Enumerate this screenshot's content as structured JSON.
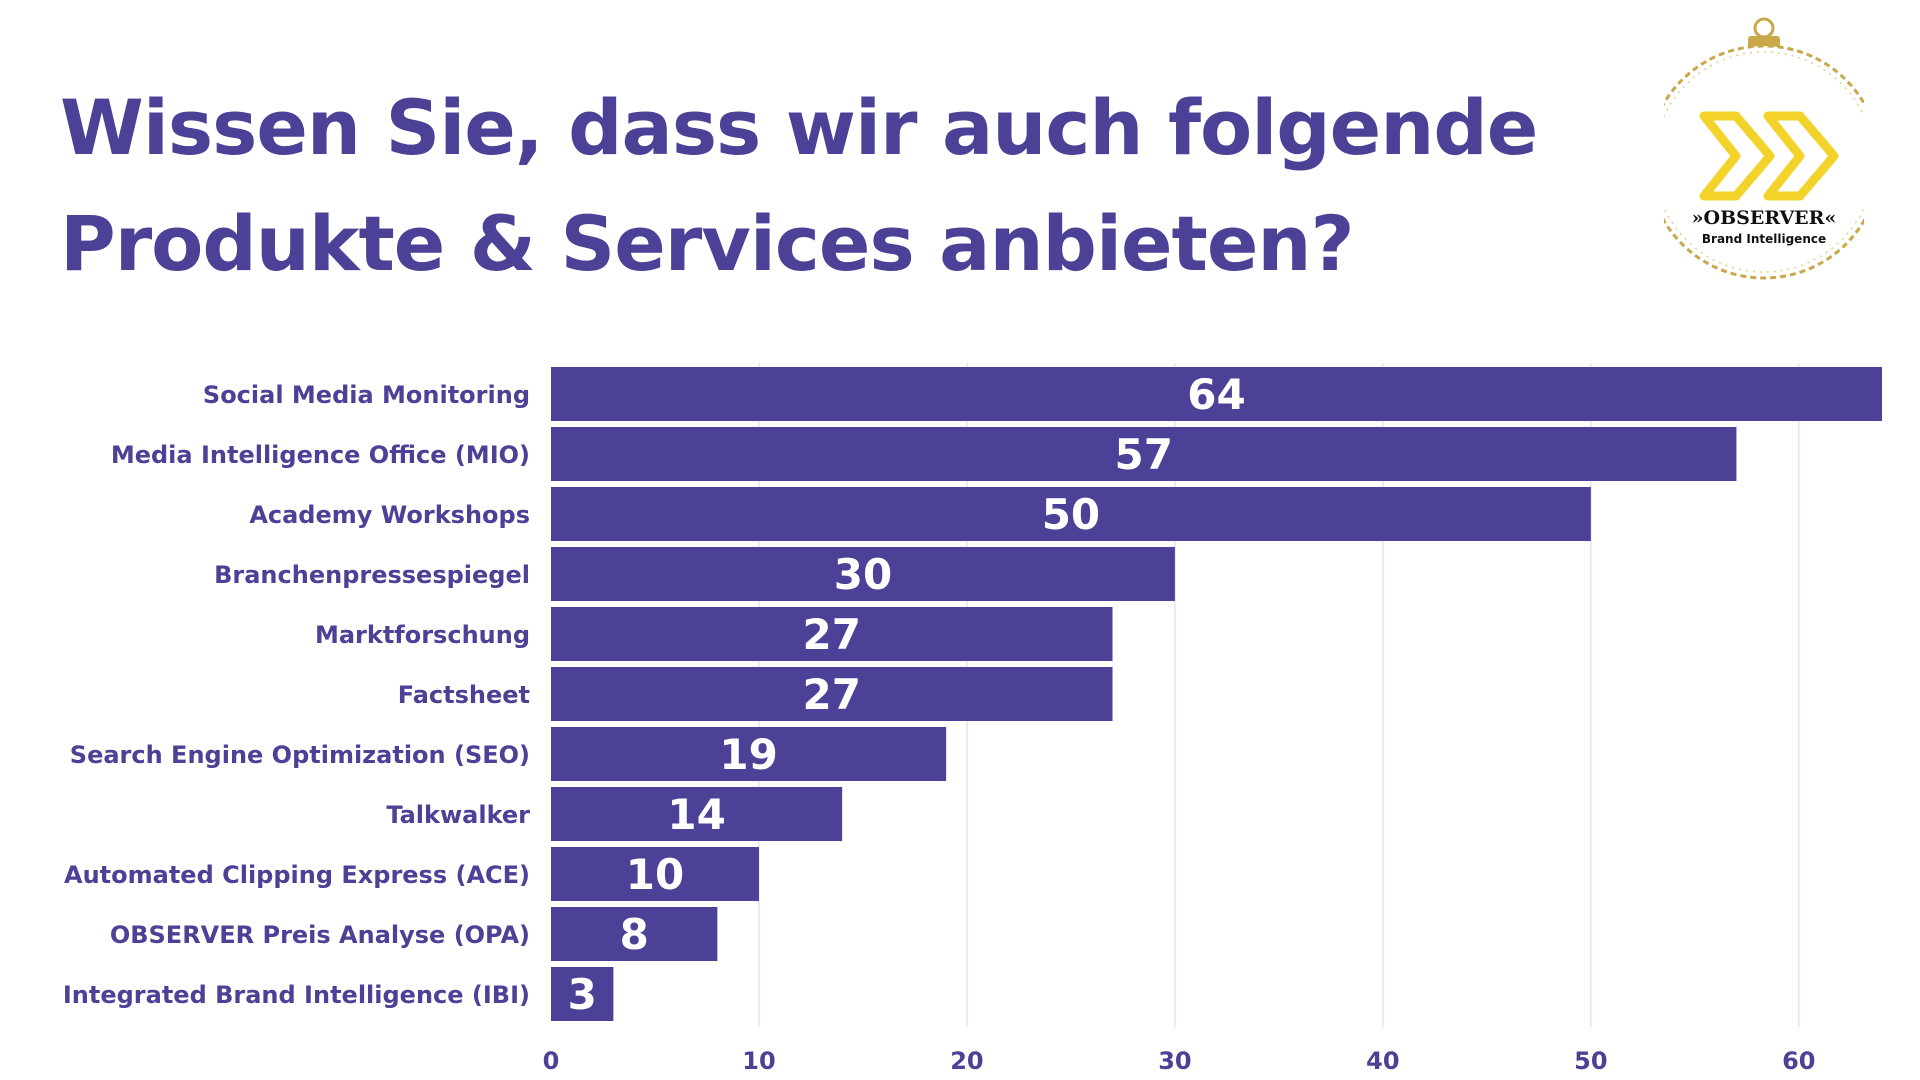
{
  "title": {
    "line1": "Wissen Sie, dass wir auch folgende",
    "line2": "Produkte & Services anbieten?"
  },
  "logo": {
    "brand": "»OBSERVER«",
    "tagline": "Brand Intelligence",
    "icon": "double-chevron-ornament-icon"
  },
  "colors": {
    "bar": "#4b4196",
    "text": "#4b4196",
    "grid": "#e4e4ee",
    "logo_gold": "#c9a849",
    "logo_yellow": "#f3d22a"
  },
  "chart_data": {
    "type": "bar",
    "orientation": "horizontal",
    "categories": [
      "Social Media Monitoring",
      "Media Intelligence Office (MIO)",
      "Academy Workshops",
      "Branchenpressespiegel",
      "Marktforschung",
      "Factsheet",
      "Search Engine Optimization (SEO)",
      "Talkwalker",
      "Automated Clipping Express (ACE)",
      "OBSERVER Preis Analyse (OPA)",
      "Integrated Brand Intelligence (IBI)"
    ],
    "values": [
      64,
      57,
      50,
      30,
      27,
      27,
      19,
      14,
      10,
      8,
      3
    ],
    "xlim": [
      0,
      64
    ],
    "xticks": [
      0,
      10,
      20,
      30,
      40,
      50,
      60
    ],
    "data_labels": true,
    "grid": "vertical",
    "legend": "none"
  }
}
